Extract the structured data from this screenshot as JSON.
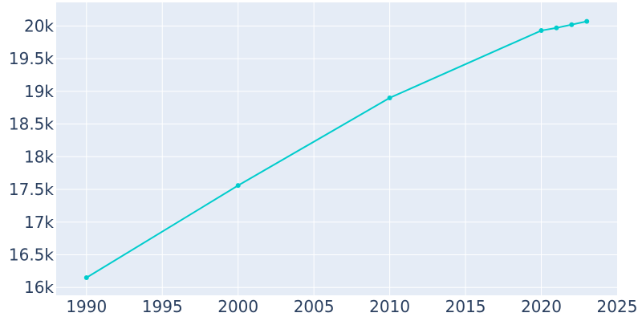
{
  "chart_data": {
    "type": "line",
    "title": "",
    "xlabel": "",
    "ylabel": "",
    "x": [
      1990,
      2000,
      2010,
      2020,
      2021,
      2022,
      2023
    ],
    "series": [
      {
        "values": [
          16150,
          17560,
          18900,
          19930,
          19970,
          20020,
          20070
        ]
      }
    ],
    "xlim": [
      1988,
      2025
    ],
    "ylim": [
      15880,
      20360
    ],
    "x_ticks": [
      1990,
      1995,
      2000,
      2005,
      2010,
      2015,
      2020,
      2025
    ],
    "x_tick_labels": [
      "1990",
      "1995",
      "2000",
      "2005",
      "2010",
      "2015",
      "2020",
      "2025"
    ],
    "y_ticks": [
      16000,
      16500,
      17000,
      17500,
      18000,
      18500,
      19000,
      19500,
      20000
    ],
    "y_tick_labels": [
      "16k",
      "16.5k",
      "17k",
      "17.5k",
      "18k",
      "18.5k",
      "19k",
      "19.5k",
      "20k"
    ],
    "grid": true,
    "legend": "none",
    "colors": {
      "line": "#00cccc",
      "plot_bg": "#e5ecf6",
      "grid": "#ffffff",
      "text": "#2a3f5f"
    }
  }
}
